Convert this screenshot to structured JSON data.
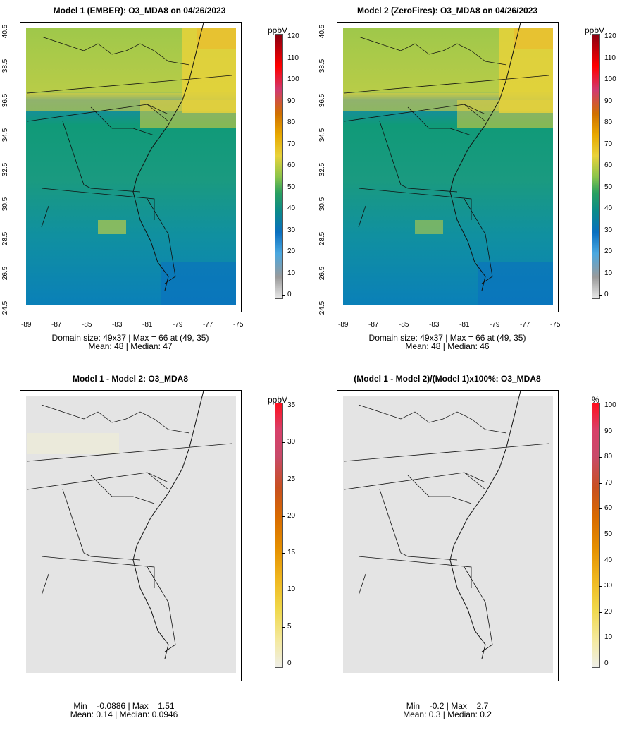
{
  "panels": [
    {
      "title": "Model 1 (EMBER): O3_MDA8 on 04/26/2023",
      "stats_line1": "Domain size: 49x37 | Max = 66 at (49, 35)",
      "stats_line2": "Mean: 48 |  Median: 47",
      "unit": "ppbV",
      "kind": "model",
      "colorbar_labels": [
        "120",
        "110",
        "100",
        "90",
        "80",
        "70",
        "60",
        "50",
        "40",
        "30",
        "20",
        "10",
        "0"
      ]
    },
    {
      "title": "Model 2 (ZeroFires): O3_MDA8 on 04/26/2023",
      "stats_line1": "Domain size: 49x37 | Max = 66 at (49, 35)",
      "stats_line2": "Mean: 48 |  Median: 46",
      "unit": "ppbV",
      "kind": "model",
      "colorbar_labels": [
        "120",
        "110",
        "100",
        "90",
        "80",
        "70",
        "60",
        "50",
        "40",
        "30",
        "20",
        "10",
        "0"
      ]
    },
    {
      "title": "Model 1 - Model 2: O3_MDA8",
      "stats_line1": "Min = -0.0886 | Max = 1.51",
      "stats_line2": "Mean: 0.14 |  Median: 0.0946",
      "unit": "ppbV",
      "kind": "diff",
      "colorbar_labels": [
        "35",
        "30",
        "25",
        "20",
        "15",
        "10",
        "5",
        "0"
      ]
    },
    {
      "title": "(Model 1 - Model 2)/(Model 1)x100%: O3_MDA8",
      "stats_line1": "Min = -0.2 | Max = 2.7",
      "stats_line2": "Mean: 0.3 |  Median: 0.2",
      "unit": "%",
      "kind": "diff",
      "colorbar_labels": [
        "100",
        "90",
        "80",
        "70",
        "60",
        "50",
        "40",
        "30",
        "20",
        "10",
        "0"
      ]
    }
  ],
  "axis": {
    "x_ticks": [
      "-89",
      "-87",
      "-85",
      "-83",
      "-81",
      "-79",
      "-77",
      "-75"
    ],
    "y_ticks": [
      "24.5",
      "26.5",
      "28.5",
      "30.5",
      "32.5",
      "34.5",
      "36.5",
      "38.5",
      "40.5"
    ]
  },
  "colors": {
    "model_scale": [
      "#e8e8e8",
      "#9a9a9a",
      "#4aa8e0",
      "#0a6fc0",
      "#0b8a8a",
      "#2aa060",
      "#8ac44a",
      "#e8d23a",
      "#e8a800",
      "#d07000",
      "#d04020",
      "#d03a70",
      "#ff0000",
      "#8a0010"
    ],
    "diff_scale": [
      "#efefe8",
      "#f4e9a0",
      "#f0d84a",
      "#f0b820",
      "#e59000",
      "#d86a00",
      "#c85020",
      "#c84a6a",
      "#d8406a",
      "#ff1020"
    ],
    "no_data": "#e4e4e4"
  }
}
